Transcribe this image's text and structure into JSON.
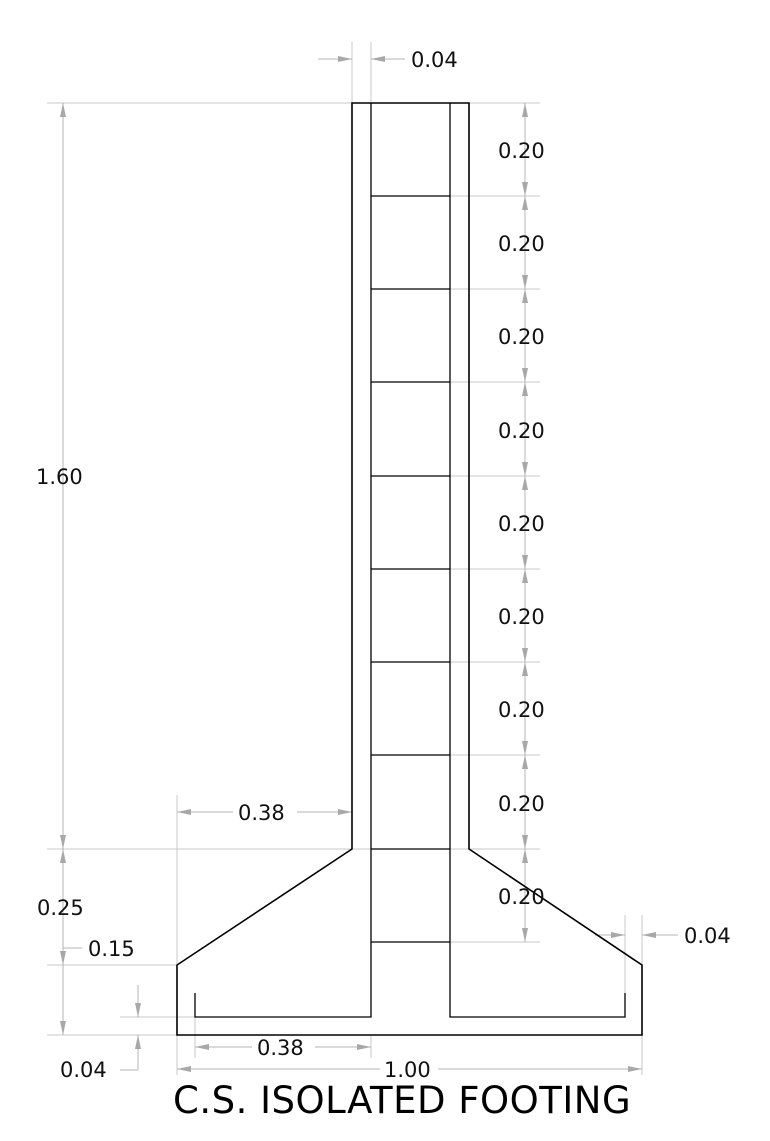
{
  "title": "C.S. ISOLATED FOOTING",
  "colors": {
    "outline": "#000000",
    "dimension": "#b5b5b5",
    "text": "#111111"
  },
  "dimensions": {
    "column_cover_top": "0.04",
    "column_height": "1.60",
    "tie_spacings": [
      "0.20",
      "0.20",
      "0.20",
      "0.20",
      "0.20",
      "0.20",
      "0.20",
      "0.20",
      "0.20"
    ],
    "footing_overhang": "0.38",
    "footing_depth": "0.25",
    "footing_edge_depth": "0.15",
    "bottom_cover": "0.04",
    "bar_projection": "0.38",
    "footing_width": "1.00",
    "side_cover": "0.04"
  }
}
